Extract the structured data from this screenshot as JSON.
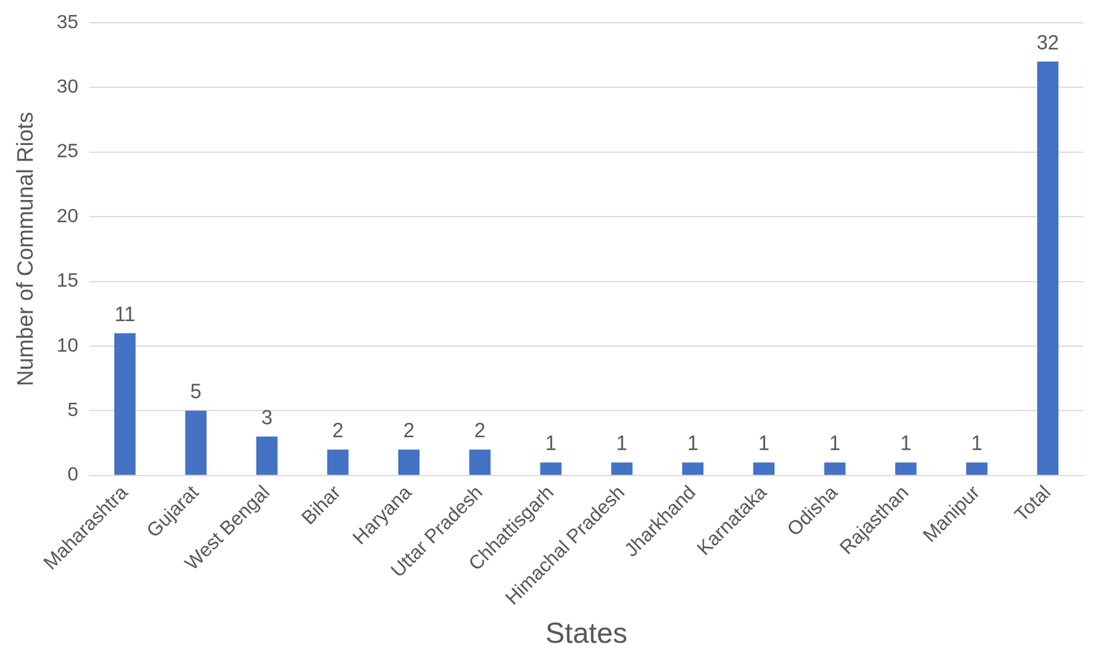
{
  "chart_data": {
    "type": "bar",
    "x_label": "States",
    "y_label": "Number of Communal Riots",
    "categories": [
      "Maharashtra",
      "Gujarat",
      "West Bengal",
      "Bihar",
      "Haryana",
      "Uttar Pradesh",
      "Chhattisgarh",
      "Himachal Pradesh",
      "Jharkhand",
      "Karnataka",
      "Odisha",
      "Rajasthan",
      "Manipur",
      "Total"
    ],
    "values": [
      11,
      5,
      3,
      2,
      2,
      2,
      1,
      1,
      1,
      1,
      1,
      1,
      1,
      32
    ],
    "color": "#4472c4",
    "ylim": [
      0,
      35
    ],
    "yticks": [
      0,
      5,
      10,
      15,
      20,
      25,
      30,
      35
    ],
    "grid": true,
    "data_labels": true
  }
}
